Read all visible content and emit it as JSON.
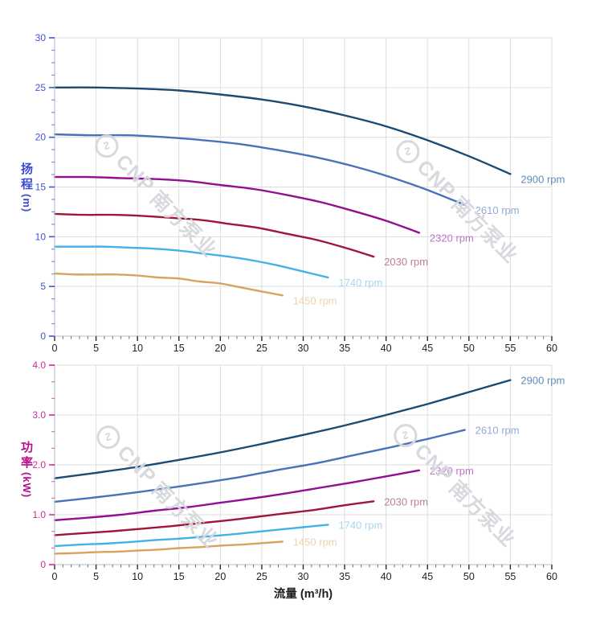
{
  "watermark": {
    "brand": "CNP",
    "company": "南方泵业"
  },
  "x_axis": {
    "title": "流量 (m³/h)",
    "min": 0,
    "max": 60,
    "major_step": 5,
    "minor_step": 1,
    "tick_values": [
      0,
      5,
      10,
      15,
      20,
      25,
      30,
      35,
      40,
      45,
      50,
      55,
      60
    ],
    "tick_labels": [
      "0",
      "5",
      "10",
      "15",
      "20",
      "25",
      "30",
      "35",
      "40",
      "45",
      "50",
      "55",
      "60"
    ],
    "label_color": "#1f1f1f"
  },
  "chart_data": [
    {
      "type": "line",
      "name": "head-vs-flow",
      "y_axis": {
        "title": "扬程",
        "unit": "(m)",
        "min": 0,
        "max": 30,
        "major_step": 5,
        "minor_step": 1.25,
        "tick_values": [
          0,
          5,
          10,
          15,
          20,
          25,
          30
        ],
        "tick_labels": [
          "0",
          "5",
          "10",
          "15",
          "20",
          "25",
          "30"
        ],
        "color": "#4356d2",
        "title_color": "#3a4bd0"
      },
      "series": [
        {
          "label": "2900 rpm",
          "rpm": 2900,
          "color": "#1b4a73",
          "label_color": "#6088bb",
          "x": [
            0,
            5,
            10,
            15,
            20,
            25,
            30,
            35,
            40,
            45,
            50,
            55
          ],
          "y": [
            25,
            25,
            24.9,
            24.7,
            24.3,
            23.8,
            23.1,
            22.2,
            21.1,
            19.7,
            18.1,
            16.3
          ]
        },
        {
          "label": "2610 rpm",
          "rpm": 2610,
          "color": "#4a72b8",
          "label_color": "#93a9d6",
          "x": [
            0,
            4.5,
            9,
            13.5,
            18,
            22.5,
            27,
            31.5,
            36,
            40.5,
            45,
            49.5
          ],
          "y": [
            20.3,
            20.2,
            20.2,
            20,
            19.7,
            19.3,
            18.7,
            18,
            17.1,
            16,
            14.7,
            13.2
          ]
        },
        {
          "label": "2320 rpm",
          "rpm": 2320,
          "color": "#930e93",
          "label_color": "#bd74c6",
          "x": [
            0,
            4,
            8,
            12,
            16,
            20,
            24,
            28,
            32,
            36,
            40,
            44
          ],
          "y": [
            16,
            16,
            15.9,
            15.8,
            15.6,
            15.2,
            14.8,
            14.2,
            13.5,
            12.6,
            11.6,
            10.4
          ]
        },
        {
          "label": "2030 rpm",
          "rpm": 2030,
          "color": "#9e1638",
          "label_color": "#bd7e92",
          "x": [
            0,
            3.5,
            7,
            10.5,
            14,
            17.5,
            21,
            24.5,
            28,
            31.5,
            35,
            38.5
          ],
          "y": [
            12.3,
            12.2,
            12.2,
            12.1,
            11.9,
            11.7,
            11.3,
            10.9,
            10.3,
            9.7,
            8.9,
            8
          ]
        },
        {
          "label": "1740 rpm",
          "rpm": 1740,
          "color": "#41b2e8",
          "label_color": "#a6d6f2",
          "x": [
            0,
            3,
            6,
            9,
            12,
            15,
            18,
            21,
            24,
            27,
            30,
            33
          ],
          "y": [
            9,
            9,
            9,
            8.9,
            8.8,
            8.6,
            8.3,
            8,
            7.6,
            7.1,
            6.5,
            5.9
          ]
        },
        {
          "label": "1450 rpm",
          "rpm": 1450,
          "color": "#d8a35c",
          "label_color": "#ecd3ad",
          "x": [
            0,
            2.5,
            5,
            7.5,
            10,
            12.5,
            15,
            17.5,
            20,
            22.5,
            25,
            27.5
          ],
          "y": [
            6.3,
            6.2,
            6.2,
            6.2,
            6.1,
            5.9,
            5.8,
            5.5,
            5.3,
            4.9,
            4.5,
            4.1
          ]
        }
      ]
    },
    {
      "type": "line",
      "name": "power-vs-flow",
      "y_axis": {
        "title": "功率",
        "unit": "(kW)",
        "min": 0,
        "max": 4,
        "major_step": 1,
        "minor_step": 0.3333,
        "tick_values": [
          0,
          1,
          2,
          3,
          4
        ],
        "tick_labels": [
          "0",
          "1.0",
          "2.0",
          "3.0",
          "4.0"
        ],
        "color": "#d02b9c",
        "title_color": "#b60d8e"
      },
      "series": [
        {
          "label": "2900 rpm",
          "rpm": 2900,
          "color": "#1b4a73",
          "label_color": "#6088bb",
          "x": [
            0,
            5,
            10,
            15,
            20,
            25,
            30,
            35,
            40,
            45,
            50,
            55
          ],
          "y": [
            1.73,
            1.84,
            1.96,
            2.1,
            2.25,
            2.42,
            2.6,
            2.79,
            3,
            3.22,
            3.46,
            3.7
          ]
        },
        {
          "label": "2610 rpm",
          "rpm": 2610,
          "color": "#4a72b8",
          "label_color": "#93a9d6",
          "x": [
            0,
            4.5,
            9,
            13.5,
            18,
            22.5,
            27,
            31.5,
            36,
            40.5,
            45,
            49.5
          ],
          "y": [
            1.26,
            1.34,
            1.43,
            1.53,
            1.64,
            1.76,
            1.9,
            2.03,
            2.19,
            2.35,
            2.52,
            2.7
          ]
        },
        {
          "label": "2320 rpm",
          "rpm": 2320,
          "color": "#930e93",
          "label_color": "#bd74c6",
          "x": [
            0,
            4,
            8,
            12,
            16,
            20,
            24,
            28,
            32,
            36,
            40,
            44
          ],
          "y": [
            0.89,
            0.94,
            1,
            1.08,
            1.15,
            1.24,
            1.33,
            1.43,
            1.54,
            1.65,
            1.77,
            1.89
          ]
        },
        {
          "label": "2030 rpm",
          "rpm": 2030,
          "color": "#9e1638",
          "label_color": "#bd7e92",
          "x": [
            0,
            3.5,
            7,
            10.5,
            14,
            17.5,
            21,
            24.5,
            28,
            31.5,
            35,
            38.5
          ],
          "y": [
            0.59,
            0.63,
            0.67,
            0.72,
            0.77,
            0.83,
            0.89,
            0.96,
            1.03,
            1.1,
            1.19,
            1.27
          ]
        },
        {
          "label": "1740 rpm",
          "rpm": 1740,
          "color": "#41b2e8",
          "label_color": "#a6d6f2",
          "x": [
            0,
            3,
            6,
            9,
            12,
            15,
            18,
            21,
            24,
            27,
            30,
            33
          ],
          "y": [
            0.37,
            0.4,
            0.42,
            0.45,
            0.49,
            0.52,
            0.56,
            0.6,
            0.65,
            0.7,
            0.75,
            0.8
          ]
        },
        {
          "label": "1450 rpm",
          "rpm": 1450,
          "color": "#d8a35c",
          "label_color": "#ecd3ad",
          "x": [
            0,
            2.5,
            5,
            7.5,
            10,
            12.5,
            15,
            17.5,
            20,
            22.5,
            25,
            27.5
          ],
          "y": [
            0.22,
            0.23,
            0.25,
            0.26,
            0.28,
            0.3,
            0.33,
            0.35,
            0.38,
            0.4,
            0.43,
            0.46
          ]
        }
      ]
    }
  ]
}
